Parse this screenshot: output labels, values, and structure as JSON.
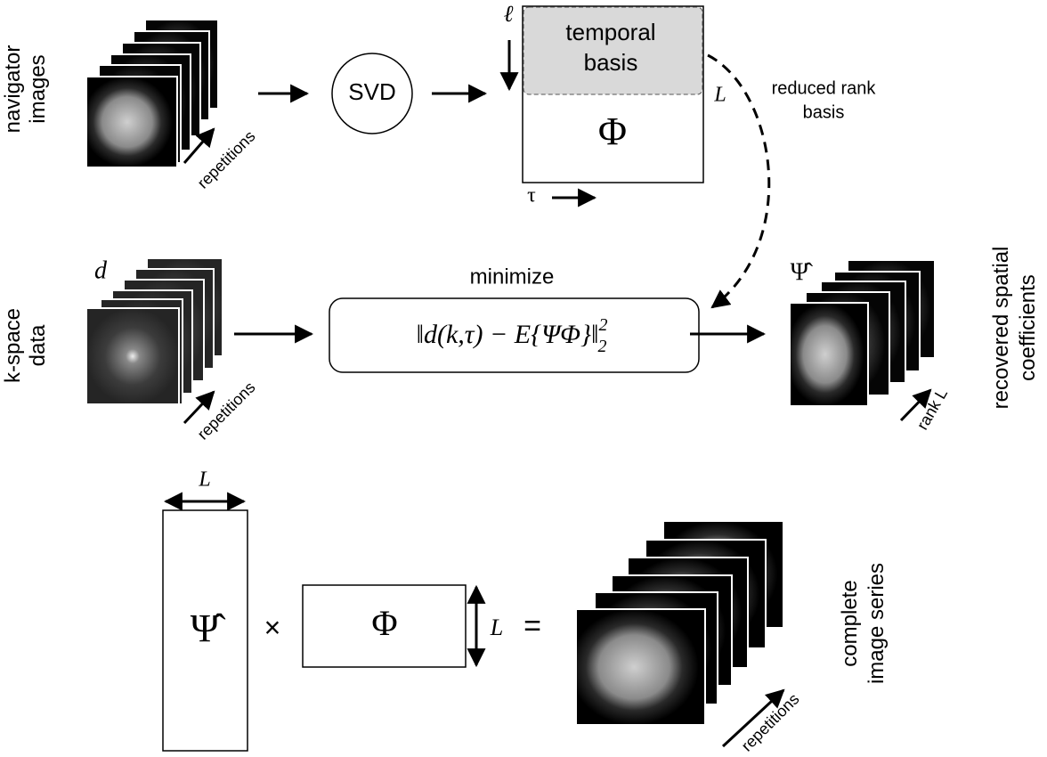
{
  "navigator": {
    "label_lines": [
      "navigator",
      "images"
    ],
    "axis_label": "repetitions"
  },
  "svd": {
    "label": "SVD"
  },
  "temporal_matrix": {
    "row_index": "ℓ",
    "highlight_label_lines": [
      "temporal",
      "basis"
    ],
    "rank": "L",
    "symbol": "Φ",
    "col_index": "τ"
  },
  "edge_label_lines": [
    "reduced rank",
    "basis"
  ],
  "kspace": {
    "label_lines": [
      "k-space",
      "data"
    ],
    "symbol": "d",
    "axis_label": "repetitions"
  },
  "objective": {
    "caption": "minimize",
    "body": "‖d(k,τ) − E{ΨΦ}‖",
    "sup": "2",
    "sub": "2"
  },
  "recovered": {
    "symbol": "Ψ̂",
    "axis_label": "rank L",
    "label_lines": [
      "recovered spatial",
      "coefficients"
    ]
  },
  "product": {
    "left_width": "L",
    "left_symbol": "Ψ̂",
    "operator": "×",
    "right_symbol": "Φ",
    "right_height": "L",
    "equals": "=",
    "axis_label": "repetitions",
    "label_lines": [
      "complete",
      "image series"
    ]
  }
}
